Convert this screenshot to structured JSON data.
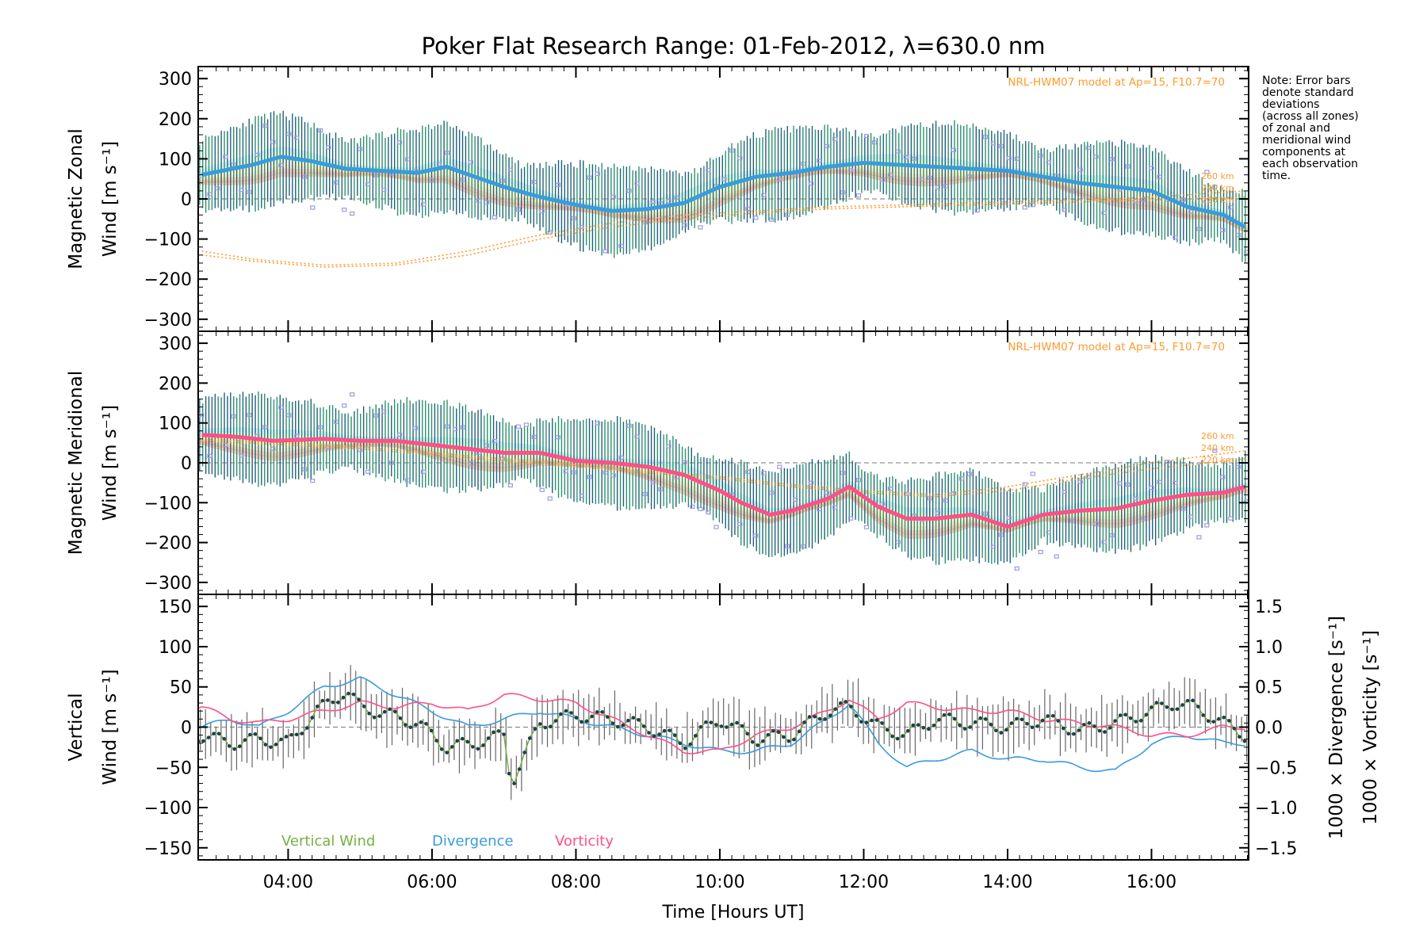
{
  "title": "Poker Flat Research Range: 01-Feb-2012, λ=630.0 nm",
  "note": [
    "Note: Error bars",
    "denote standard",
    "deviations",
    "(across all zones)",
    "of zonal and",
    "meridional wind",
    "components at",
    "each observation",
    "time."
  ],
  "model_label": "NRL-HWM07 model at Ap=15, F10.7=70",
  "x_axis": {
    "label": "Time [Hours UT]",
    "range_hours": [
      2.75,
      17.35
    ],
    "ticks": [
      {
        "h": 4,
        "label": "04:00"
      },
      {
        "h": 6,
        "label": "06:00"
      },
      {
        "h": 8,
        "label": "08:00"
      },
      {
        "h": 10,
        "label": "10:00"
      },
      {
        "h": 12,
        "label": "12:00"
      },
      {
        "h": 14,
        "label": "14:00"
      },
      {
        "h": 16,
        "label": "16:00"
      }
    ]
  },
  "colors": {
    "zonal_line": "#3a9bdc",
    "meridional_line": "#ff4f88",
    "vertical_wind": "#76b041",
    "divergence": "#3a9bdc",
    "vorticity": "#ff4f88",
    "model": "#ff9a2e",
    "zone_points": "#9c9ce0",
    "error_bars": "#20607a",
    "salmon": "#ffa890"
  },
  "chart_data": [
    {
      "type": "line",
      "panel": "zonal",
      "ylabel": [
        "Magnetic Zonal",
        "Wind [m s⁻¹]"
      ],
      "ylim": [
        -330,
        330
      ],
      "yticks": [
        300,
        200,
        100,
        0,
        -100,
        -200,
        -300
      ],
      "model_altitude_labels": [
        "260 km",
        "240 km",
        "220 km"
      ],
      "series": [
        {
          "name": "",
          "x": [
            2.8,
            3.5,
            3.9,
            4.3,
            4.8,
            5.3,
            5.8,
            6.2,
            6.6,
            7.0,
            7.5,
            8.0,
            8.5,
            9.0,
            9.5,
            10.0,
            10.5,
            11.0,
            11.5,
            12.0,
            12.5,
            13.0,
            13.5,
            14.0,
            14.5,
            15.0,
            15.5,
            16.0,
            16.5,
            17.0,
            17.3
          ],
          "y": [
            60,
            85,
            105,
            95,
            75,
            70,
            65,
            80,
            55,
            30,
            5,
            -15,
            -30,
            -25,
            -10,
            30,
            55,
            65,
            80,
            90,
            85,
            80,
            75,
            70,
            55,
            40,
            30,
            20,
            -20,
            -40,
            -70
          ]
        }
      ],
      "model_series": [
        {
          "x": [
            2.8,
            3.5,
            4.5,
            5.5,
            6.5,
            7.5,
            8.5,
            9.5,
            10.5,
            11.5,
            12.5,
            13.5,
            14.5,
            15.5,
            16.5,
            17.3
          ],
          "y": [
            -130,
            -150,
            -165,
            -160,
            -130,
            -90,
            -60,
            -40,
            -30,
            -20,
            -15,
            -10,
            -5,
            0,
            10,
            20
          ]
        },
        {
          "x": [
            2.8,
            3.5,
            4.5,
            5.5,
            6.5,
            7.5,
            8.5,
            9.5,
            10.5,
            11.5,
            12.5,
            13.5,
            14.5,
            15.5,
            16.5,
            17.3
          ],
          "y": [
            -140,
            -155,
            -170,
            -165,
            -140,
            -100,
            -70,
            -50,
            -35,
            -25,
            -20,
            -15,
            -10,
            -5,
            0,
            5
          ]
        }
      ]
    },
    {
      "type": "line",
      "panel": "meridional",
      "ylabel": [
        "Magnetic Meridional",
        "Wind [m s⁻¹]"
      ],
      "ylim": [
        -330,
        330
      ],
      "yticks": [
        300,
        200,
        100,
        0,
        -100,
        -200,
        -300
      ],
      "model_altitude_labels": [
        "260 km",
        "240 km",
        "220 km"
      ],
      "series": [
        {
          "name": "",
          "x": [
            2.8,
            3.3,
            3.8,
            4.5,
            5.0,
            5.5,
            6.0,
            6.5,
            7.0,
            7.5,
            8.0,
            8.5,
            9.0,
            9.5,
            10.0,
            10.3,
            10.7,
            11.0,
            11.5,
            11.8,
            12.2,
            12.6,
            13.0,
            13.5,
            14.0,
            14.5,
            15.0,
            15.5,
            16.0,
            16.5,
            17.0,
            17.3
          ],
          "y": [
            70,
            65,
            55,
            60,
            55,
            55,
            45,
            35,
            25,
            25,
            5,
            0,
            -10,
            -30,
            -70,
            -100,
            -130,
            -120,
            -90,
            -60,
            -110,
            -140,
            -140,
            -130,
            -160,
            -130,
            -120,
            -115,
            -95,
            -80,
            -75,
            -60
          ]
        }
      ],
      "model_series": [
        {
          "x": [
            2.8,
            4,
            5,
            6,
            7,
            8,
            9,
            10,
            11,
            12,
            13,
            14,
            15,
            16,
            17.3
          ],
          "y": [
            60,
            50,
            40,
            25,
            10,
            -5,
            -20,
            -35,
            -55,
            -70,
            -80,
            -60,
            -30,
            0,
            30
          ]
        },
        {
          "x": [
            2.8,
            4,
            5,
            6,
            7,
            8,
            9,
            10,
            11,
            12,
            13,
            14,
            15,
            16,
            17.3
          ],
          "y": [
            55,
            45,
            35,
            20,
            5,
            -10,
            -25,
            -40,
            -60,
            -75,
            -85,
            -70,
            -40,
            -15,
            10
          ]
        }
      ]
    },
    {
      "type": "line",
      "panel": "vertical",
      "ylabel": [
        "Vertical",
        "Wind [m s⁻¹]"
      ],
      "ylim": [
        -165,
        165
      ],
      "yticks": [
        150,
        100,
        50,
        0,
        -50,
        -100,
        -150
      ],
      "right_axis": {
        "ylim": [
          -1.65,
          1.65
        ],
        "ticks": [
          1.5,
          1.0,
          0.5,
          0.0,
          -0.5,
          -1.0,
          -1.5
        ],
        "labels": [
          "1.5",
          "1.0",
          "0.5",
          "0.0",
          "−0.5",
          "−1.0",
          "−1.5"
        ],
        "divergence_label": "1000 × Divergence [s⁻¹]",
        "vorticity_label": "1000 × Vorticity [s⁻¹]"
      },
      "legend": [
        "Vertical Wind",
        "Divergence",
        "Vorticity"
      ],
      "series": [
        {
          "name": "Vertical Wind",
          "x": [
            2.8,
            3.2,
            3.6,
            4.0,
            4.4,
            4.8,
            5.0,
            5.4,
            5.8,
            6.2,
            6.6,
            7.0,
            7.1,
            7.5,
            8.0,
            8.5,
            9.0,
            9.5,
            10.0,
            10.5,
            11.0,
            11.5,
            11.8,
            12.2,
            12.6,
            13.0,
            13.5,
            14.0,
            14.5,
            15.0,
            15.5,
            16.0,
            16.3,
            16.6,
            17.0,
            17.3
          ],
          "y": [
            -10,
            -20,
            -15,
            -20,
            20,
            45,
            25,
            15,
            5,
            -25,
            -20,
            -10,
            -70,
            5,
            15,
            10,
            0,
            -20,
            10,
            -15,
            -10,
            20,
            25,
            0,
            -10,
            10,
            5,
            0,
            10,
            -5,
            5,
            20,
            30,
            25,
            5,
            -10
          ]
        },
        {
          "name": "Divergence",
          "x": [
            2.8,
            3.2,
            3.6,
            4.0,
            4.5,
            5.0,
            5.5,
            6.0,
            6.5,
            7.0,
            7.5,
            8.0,
            8.5,
            9.0,
            9.5,
            10.0,
            10.5,
            11.0,
            11.5,
            11.8,
            12.2,
            12.6,
            13.0,
            13.5,
            14.0,
            14.5,
            15.0,
            15.5,
            16.0,
            16.5,
            17.0,
            17.3
          ],
          "y": [
            0.0,
            0.1,
            0.0,
            0.2,
            0.5,
            0.6,
            0.4,
            0.2,
            0.0,
            0.1,
            0.2,
            0.1,
            0.0,
            -0.1,
            -0.2,
            -0.3,
            -0.3,
            -0.2,
            0.1,
            0.3,
            -0.2,
            -0.5,
            -0.4,
            -0.3,
            -0.4,
            -0.4,
            -0.5,
            -0.55,
            -0.2,
            -0.1,
            -0.2,
            -0.2
          ]
        },
        {
          "name": "Vorticity",
          "x": [
            2.8,
            3.2,
            3.6,
            4.0,
            4.5,
            5.0,
            5.5,
            6.0,
            6.5,
            7.0,
            7.5,
            8.0,
            8.5,
            9.0,
            9.5,
            10.0,
            10.5,
            11.0,
            11.5,
            11.8,
            12.2,
            12.6,
            13.0,
            13.5,
            14.0,
            14.5,
            15.0,
            15.5,
            16.0,
            16.5,
            17.0,
            17.3
          ],
          "y": [
            0.25,
            0.1,
            0.05,
            0.1,
            0.2,
            0.3,
            0.25,
            0.3,
            0.2,
            0.4,
            0.35,
            0.3,
            0.1,
            -0.1,
            -0.3,
            -0.3,
            -0.1,
            0.0,
            0.2,
            0.35,
            0.1,
            0.3,
            0.25,
            0.2,
            0.2,
            0.1,
            0.05,
            0.0,
            -0.1,
            -0.1,
            0.0,
            0.0
          ]
        }
      ]
    }
  ]
}
